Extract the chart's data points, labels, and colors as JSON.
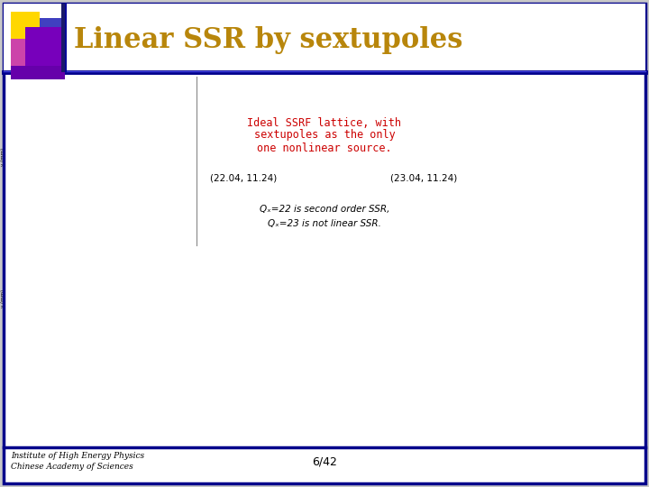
{
  "title": "Linear SSR by sextupoles",
  "title_color": "#B8860B",
  "slide_bg": "#C8C8C8",
  "border_color": "#00008B",
  "center_text_lines": [
    "Ideal SSRF lattice, with",
    "sextupoles as the only",
    "one nonlinear source."
  ],
  "center_text_color": "#CC0000",
  "annotation1": "(22.04, 11.24)",
  "annotation2": "(23.04, 11.24)",
  "eq_line1": "Qₓ=22 is second order SSR,",
  "eq_line2": "Qₓ=23 is not linear SSR.",
  "footer_left1": "Institute of High Energy Physics",
  "footer_left2": "Chinese Academy of Sciences",
  "footer_center": "6/42",
  "header_line_color": "#00008B",
  "footer_line_color": "#00008B"
}
